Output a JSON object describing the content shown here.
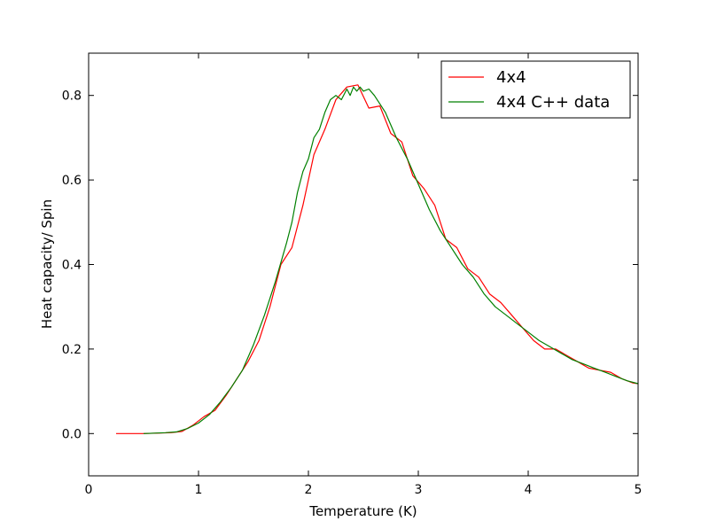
{
  "chart_data": {
    "type": "line",
    "title": "",
    "xlabel": "Temperature (K)",
    "ylabel": "Heat capacity/ Spin",
    "xlim": [
      0,
      5
    ],
    "ylim": [
      -0.1,
      0.9
    ],
    "xticks": [
      0,
      1,
      2,
      3,
      4,
      5
    ],
    "xtick_labels": [
      "0",
      "1",
      "2",
      "3",
      "4",
      "5"
    ],
    "yticks": [
      0.0,
      0.2,
      0.4,
      0.6,
      0.8
    ],
    "ytick_labels": [
      "0.0",
      "0.2",
      "0.4",
      "0.6",
      "0.8"
    ],
    "grid": false,
    "legend_position": "top-right",
    "series": [
      {
        "name": "4x4",
        "color": "#ff0000",
        "x": [
          0.25,
          0.5,
          0.75,
          0.85,
          0.95,
          1.05,
          1.15,
          1.25,
          1.35,
          1.45,
          1.55,
          1.65,
          1.75,
          1.85,
          1.95,
          2.05,
          2.15,
          2.25,
          2.35,
          2.45,
          2.55,
          2.65,
          2.75,
          2.85,
          2.95,
          3.05,
          3.15,
          3.25,
          3.35,
          3.45,
          3.55,
          3.65,
          3.75,
          3.85,
          3.95,
          4.05,
          4.15,
          4.25,
          4.35,
          4.45,
          4.55,
          4.65,
          4.75,
          4.85,
          4.95,
          5.0
        ],
        "y": [
          0.0,
          0.0,
          0.002,
          0.005,
          0.02,
          0.04,
          0.055,
          0.09,
          0.13,
          0.17,
          0.22,
          0.3,
          0.4,
          0.44,
          0.54,
          0.66,
          0.72,
          0.79,
          0.82,
          0.825,
          0.77,
          0.775,
          0.71,
          0.69,
          0.61,
          0.58,
          0.54,
          0.46,
          0.44,
          0.39,
          0.37,
          0.33,
          0.31,
          0.28,
          0.25,
          0.22,
          0.2,
          0.2,
          0.185,
          0.17,
          0.155,
          0.15,
          0.145,
          0.13,
          0.12,
          0.118
        ]
      },
      {
        "name": "4x4 C++ data",
        "color": "#008000",
        "x": [
          0.5,
          0.6,
          0.7,
          0.8,
          0.9,
          1.0,
          1.1,
          1.2,
          1.3,
          1.4,
          1.5,
          1.6,
          1.7,
          1.8,
          1.85,
          1.9,
          1.95,
          2.0,
          2.05,
          2.1,
          2.15,
          2.2,
          2.25,
          2.3,
          2.35,
          2.38,
          2.41,
          2.44,
          2.47,
          2.5,
          2.55,
          2.6,
          2.65,
          2.7,
          2.75,
          2.8,
          2.9,
          3.0,
          3.1,
          3.2,
          3.3,
          3.4,
          3.5,
          3.6,
          3.7,
          3.8,
          3.9,
          4.0,
          4.1,
          4.2,
          4.3,
          4.4,
          4.5,
          4.6,
          4.7,
          4.8,
          4.9,
          5.0
        ],
        "y": [
          0.0,
          0.001,
          0.002,
          0.004,
          0.012,
          0.025,
          0.045,
          0.075,
          0.11,
          0.15,
          0.21,
          0.28,
          0.36,
          0.45,
          0.5,
          0.57,
          0.62,
          0.65,
          0.7,
          0.72,
          0.76,
          0.79,
          0.8,
          0.79,
          0.815,
          0.8,
          0.82,
          0.81,
          0.82,
          0.81,
          0.815,
          0.8,
          0.78,
          0.76,
          0.73,
          0.7,
          0.65,
          0.59,
          0.53,
          0.48,
          0.44,
          0.4,
          0.37,
          0.33,
          0.3,
          0.28,
          0.26,
          0.24,
          0.22,
          0.205,
          0.19,
          0.175,
          0.165,
          0.155,
          0.145,
          0.135,
          0.125,
          0.118
        ]
      }
    ]
  }
}
